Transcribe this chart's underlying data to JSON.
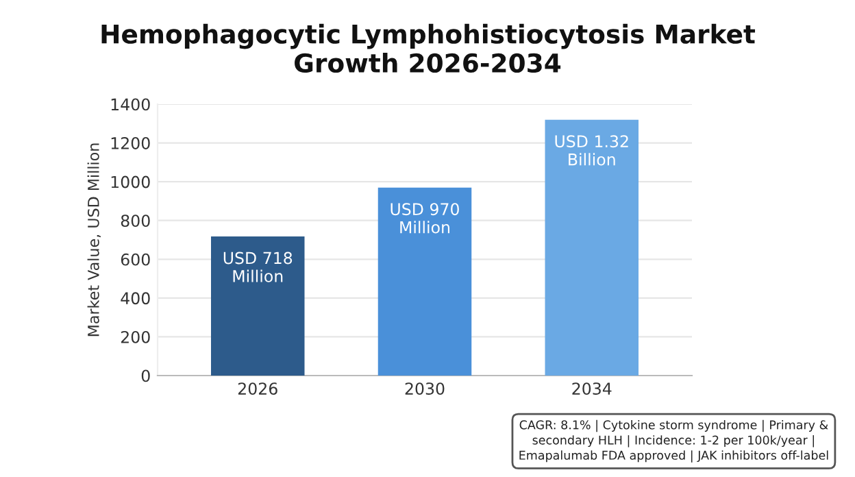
{
  "chart_data": {
    "type": "bar",
    "title": "Hemophagocytic Lymphohistiocytosis Market\nGrowth 2026-2034",
    "ylabel": "Market Value, USD Million",
    "categories": [
      "2026",
      "2030",
      "2034"
    ],
    "values": [
      718,
      970,
      1320
    ],
    "colors": [
      "#2d5b8b",
      "#4a90d9",
      "#6aa9e4"
    ],
    "value_labels": [
      "USD 718\nMillion",
      "USD 970\nMillion",
      "USD 1.32\nBillion"
    ],
    "ylim": [
      0,
      1400
    ],
    "yticks": [
      0,
      200,
      400,
      600,
      800,
      1000,
      1200,
      1400
    ],
    "grid": "y",
    "annotations": [
      "CAGR: 8.1% | Cytokine storm syndrome | Primary &\nsecondary HLH | Incidence: 1-2 per 100k/year |\nEmapalumab FDA approved | JAK inhibitors off-label"
    ]
  }
}
